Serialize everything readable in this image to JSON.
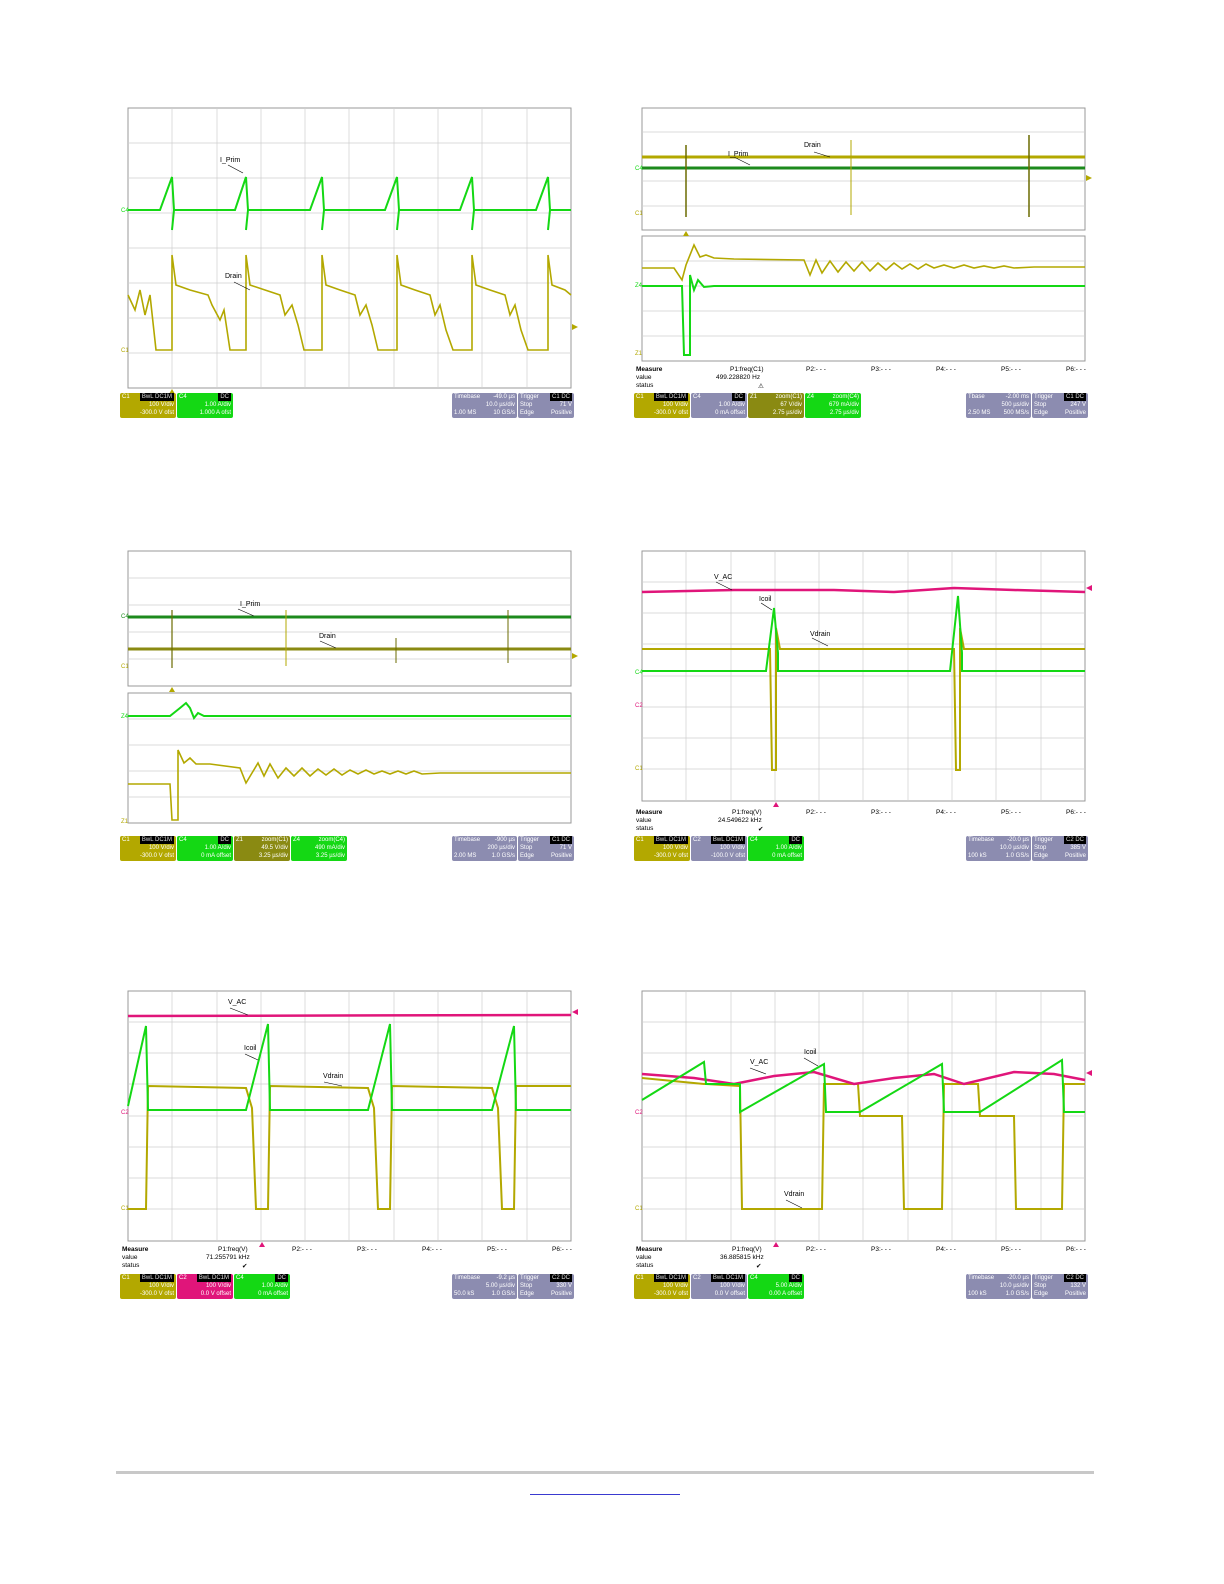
{
  "scopes": [
    {
      "labels": [
        "I_Prim",
        "Drain"
      ],
      "markers": [
        "C4",
        "C1"
      ],
      "boxes": [
        {
          "h": "C1",
          "tag": "BwL DC1M",
          "r1": "100 V/div",
          "r2": "-300.0 V ofst",
          "color": "#b3a800"
        },
        {
          "h": "C4",
          "tag": "DC",
          "r1": "1.00 A/div",
          "r2": "1.000 A ofst",
          "color": "#14d814"
        }
      ],
      "timebase": {
        "h": "Timebase",
        "v": "-49.0 µs",
        "r1a": "10.0 µs/div",
        "r2a": "1.00 MS",
        "r2b": "10 GS/s"
      },
      "trigger": {
        "h": "Trigger",
        "tag": "C1 DC",
        "r1a": "Stop",
        "r1b": "71 V",
        "r2a": "Edge",
        "r2b": "Positive"
      }
    },
    {
      "labels": [
        "Drain",
        "I_Prim"
      ],
      "markers": [
        "C4",
        "C1",
        "Z4",
        "Z1"
      ],
      "measure": {
        "title": "Measure",
        "rows": [
          "value",
          "status"
        ],
        "p1": "P1:freq(C1)",
        "p1_value": "499.228820 Hz",
        "p1_status": "⚠",
        "p": [
          "P2:- - -",
          "P3:- - -",
          "P4:- - -",
          "P5:- - -",
          "P6:- - -"
        ]
      },
      "boxes": [
        {
          "h": "C1",
          "tag": "BwL DC1M",
          "r1": "100 V/div",
          "r2": "-300.0 V ofst",
          "color": "#b3a800"
        },
        {
          "h": "C4",
          "tag": "DC",
          "r1": "1.00 A/div",
          "r2": "0 mA offset",
          "color": "#8c8cb0"
        },
        {
          "h": "Z1",
          "tag": "zoom(C1)",
          "r1": "67 V/div",
          "r2": "2.75 µs/div",
          "color": "#8a8a12"
        },
        {
          "h": "Z4",
          "tag": "zoom(C4)",
          "r1": "679 mA/div",
          "r2": "2.75 µs/div",
          "color": "#14d814"
        }
      ],
      "timebase": {
        "h": "Tbase",
        "v": "-2.00 ms",
        "r1a": "500 µs/div",
        "r2a": "2.50 MS",
        "r2b": "500 MS/s"
      },
      "trigger": {
        "h": "Trigger",
        "tag": "C1 DC",
        "r1a": "Stop",
        "r1b": "247 V",
        "r2a": "Edge",
        "r2b": "Positive"
      }
    },
    {
      "labels": [
        "I_Prim",
        "Drain"
      ],
      "markers": [
        "C4",
        "C1",
        "Z4",
        "Z1"
      ],
      "boxes": [
        {
          "h": "C1",
          "tag": "BwL DC1M",
          "r1": "100 V/div",
          "r2": "-300.0 V ofst",
          "color": "#b3a800"
        },
        {
          "h": "C4",
          "tag": "DC",
          "r1": "1.00 A/div",
          "r2": "0 mA offset",
          "color": "#14d814"
        },
        {
          "h": "Z1",
          "tag": "zoom(C1)",
          "r1": "49.5 V/div",
          "r2": "3.25 µs/div",
          "color": "#8a8a12"
        },
        {
          "h": "Z4",
          "tag": "zoom(C4)",
          "r1": "490 mA/div",
          "r2": "3.25 µs/div",
          "color": "#14d814"
        }
      ],
      "timebase": {
        "h": "Timebase",
        "v": "-900 µs",
        "r1a": "200 µs/div",
        "r2a": "2.00 MS",
        "r2b": "1.0 GS/s"
      },
      "trigger": {
        "h": "Trigger",
        "tag": "C1 DC",
        "r1a": "Stop",
        "r1b": "71 V",
        "r2a": "Edge",
        "r2b": "Positive"
      }
    },
    {
      "labels": [
        "V_AC",
        "Icoil",
        "Vdrain"
      ],
      "markers": [
        "C4",
        "C2",
        "C1"
      ],
      "measure": {
        "title": "Measure",
        "rows": [
          "value",
          "status"
        ],
        "p1": "P1:freq(V)",
        "p1_value": "24.549622 kHz",
        "p1_status": "✔",
        "p": [
          "P2:- - -",
          "P3:- - -",
          "P4:- - -",
          "P5:- - -",
          "P6:- - -"
        ]
      },
      "boxes": [
        {
          "h": "C1",
          "tag": "BwL DC1M",
          "r1": "100 V/div",
          "r2": "-300.0 V ofst",
          "color": "#b3a800"
        },
        {
          "h": "C2",
          "tag": "BwL DC1M",
          "r1": "100 V/div",
          "r2": "-100.0 V ofst",
          "color": "#8c8cb0"
        },
        {
          "h": "C4",
          "tag": "DC",
          "r1": "1.00 A/div",
          "r2": "0 mA offset",
          "color": "#14d814"
        }
      ],
      "timebase": {
        "h": "Timebase",
        "v": "-20.0 µs",
        "r1a": "10.0 µs/div",
        "r2a": "100 kS",
        "r2b": "1.0 GS/s"
      },
      "trigger": {
        "h": "Trigger",
        "tag": "C2 DC",
        "r1a": "Stop",
        "r1b": "385 V",
        "r2a": "Edge",
        "r2b": "Positive"
      }
    },
    {
      "labels": [
        "V_AC",
        "Icoil",
        "Vdrain"
      ],
      "markers": [
        "C2",
        "C1"
      ],
      "measure": {
        "title": "Measure",
        "rows": [
          "value",
          "status"
        ],
        "p1": "P1:freq(V)",
        "p1_value": "71.255791 kHz",
        "p1_status": "✔",
        "p": [
          "P2:- - -",
          "P3:- - -",
          "P4:- - -",
          "P5:- - -",
          "P6:- - -"
        ]
      },
      "boxes": [
        {
          "h": "C1",
          "tag": "BwL DC1M",
          "r1": "100 V/div",
          "r2": "-300.0 V ofst",
          "color": "#b3a800"
        },
        {
          "h": "C2",
          "tag": "BwL DC1M",
          "r1": "100 V/div",
          "r2": "0.0 V offset",
          "color": "#e0157a"
        },
        {
          "h": "C4",
          "tag": "DC",
          "r1": "1.00 A/div",
          "r2": "0 mA offset",
          "color": "#14d814"
        }
      ],
      "timebase": {
        "h": "Timebase",
        "v": "-9.2 µs",
        "r1a": "5.00 µs/div",
        "r2a": "50.0 kS",
        "r2b": "1.0 GS/s"
      },
      "trigger": {
        "h": "Trigger",
        "tag": "C2 DC",
        "r1a": "Stop",
        "r1b": "330 V",
        "r2a": "Edge",
        "r2b": "Positive"
      }
    },
    {
      "labels": [
        "V_AC",
        "Icoil",
        "Vdrain"
      ],
      "markers": [
        "C2",
        "C1"
      ],
      "measure": {
        "title": "Measure",
        "rows": [
          "value",
          "status"
        ],
        "p1": "P1:freq(V)",
        "p1_value": "36.885815 kHz",
        "p1_status": "✔",
        "p": [
          "P2:- - -",
          "P3:- - -",
          "P4:- - -",
          "P5:- - -",
          "P6:- - -"
        ]
      },
      "boxes": [
        {
          "h": "C1",
          "tag": "BwL DC1M",
          "r1": "100 V/div",
          "r2": "-300.0 V ofst",
          "color": "#b3a800"
        },
        {
          "h": "C2",
          "tag": "BwL DC1M",
          "r1": "100 V/div",
          "r2": "0.0 V offset",
          "color": "#8c8cb0"
        },
        {
          "h": "C4",
          "tag": "DC",
          "r1": "5.00 A/div",
          "r2": "0.00 A offset",
          "color": "#14d814"
        }
      ],
      "timebase": {
        "h": "Timebase",
        "v": "-20.0 µs",
        "r1a": "10.0 µs/div",
        "r2a": "100 kS",
        "r2b": "1.0 GS/s"
      },
      "trigger": {
        "h": "Trigger",
        "tag": "C2 DC",
        "r1a": "Stop",
        "r1b": "132 V",
        "r2a": "Edge",
        "r2b": "Positive"
      }
    }
  ],
  "colors": {
    "c1": "#b3a800",
    "c4": "#14d814",
    "c2": "#e0157a",
    "z1": "#6b8a10",
    "grid": "#c8c8c8",
    "panel": "#8c8cb0"
  }
}
